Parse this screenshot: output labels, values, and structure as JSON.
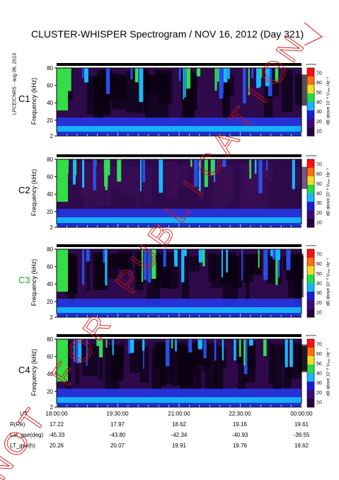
{
  "header": {
    "title": "CLUSTER-WHISPER Spectrogram / NOV 16, 2012 (Day 321)",
    "side_credit": "LPCE/CNRS - aug 06, 2013"
  },
  "watermark": {
    "text": "NOT FOR PUBLICATION",
    "color": "#d11"
  },
  "panels": [
    {
      "label": "C1",
      "label_color": "#000000"
    },
    {
      "label": "C2",
      "label_color": "#000000"
    },
    {
      "label": "C3",
      "label_color": "#22aa22"
    },
    {
      "label": "C4",
      "label_color": "#000000"
    }
  ],
  "ylabel": "Frequency (kHz)",
  "yticks": [
    "2",
    "20",
    "40",
    "60",
    "80"
  ],
  "colorbar": {
    "label": "dB above 10⁻⁸ Vₘₑₛ Hz⁻¹",
    "unit": "overflow",
    "ticks": [
      "10",
      "20",
      "30",
      "40",
      "50",
      "60",
      "70"
    ],
    "colors": [
      "#2a0040",
      "#3b0a7a",
      "#1b1bd6",
      "#15b6ff",
      "#22dd44",
      "#f0e020",
      "#ff7010",
      "#ff1010"
    ]
  },
  "orbit": {
    "rows": [
      {
        "label": "UT",
        "values": [
          "18:00:00",
          "19:30:00",
          "21:00:00",
          "22:30:00",
          "00:00:00"
        ]
      },
      {
        "label": "R(Re)",
        "values": [
          "17.22",
          "17.97",
          "18.62",
          "19.16",
          "19.61"
        ]
      },
      {
        "label": "Lat_gse(deg)",
        "values": [
          "-45.33",
          "-43.80",
          "-42.34",
          "-40.93",
          "-39.55"
        ]
      },
      {
        "label": "LT_gse(h)",
        "values": [
          "20.26",
          "20.07",
          "19.91",
          "19.76",
          "19.62"
        ]
      }
    ]
  },
  "chart_data": [
    {
      "type": "heatmap",
      "title": "C1",
      "ylabel": "Frequency (kHz)",
      "ylim": [
        2,
        80
      ],
      "x": [
        "18:00:00",
        "19:30:00",
        "21:00:00",
        "22:30:00",
        "00:00:00"
      ],
      "zlim": [
        10,
        70
      ],
      "zlabel": "dB above 10^-8 V^2 Hz^-1"
    },
    {
      "type": "heatmap",
      "title": "C2",
      "ylabel": "Frequency (kHz)",
      "ylim": [
        2,
        80
      ],
      "x": [
        "18:00:00",
        "19:30:00",
        "21:00:00",
        "22:30:00",
        "00:00:00"
      ],
      "zlim": [
        10,
        70
      ],
      "zlabel": "dB above 10^-8 V^2 Hz^-1"
    },
    {
      "type": "heatmap",
      "title": "C3",
      "ylabel": "Frequency (kHz)",
      "ylim": [
        2,
        80
      ],
      "x": [
        "18:00:00",
        "19:30:00",
        "21:00:00",
        "22:30:00",
        "00:00:00"
      ],
      "zlim": [
        10,
        70
      ],
      "zlabel": "dB above 10^-8 V^2 Hz^-1"
    },
    {
      "type": "heatmap",
      "title": "C4",
      "ylabel": "Frequency (kHz)",
      "ylim": [
        2,
        80
      ],
      "x": [
        "18:00:00",
        "19:30:00",
        "21:00:00",
        "22:30:00",
        "00:00:00"
      ],
      "zlim": [
        10,
        70
      ],
      "zlabel": "dB above 10^-8 V^2 Hz^-1"
    }
  ]
}
